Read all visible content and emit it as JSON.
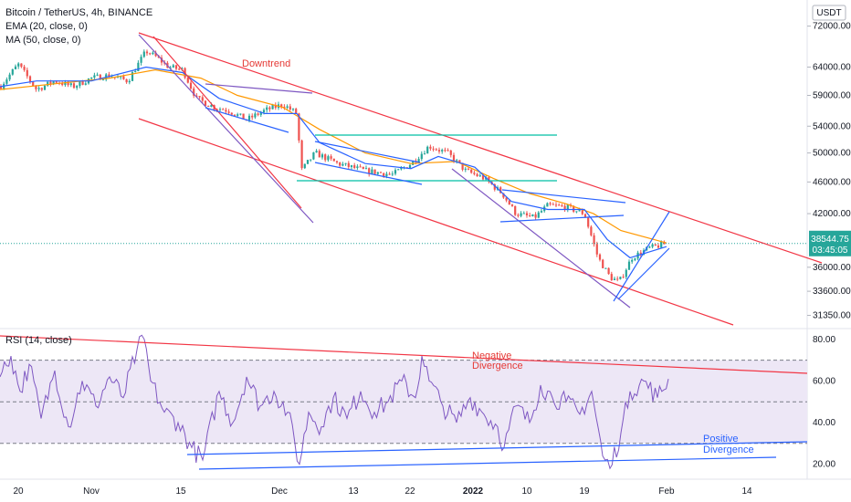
{
  "header": {
    "legend": [
      "Bitcoin / TetherUS, 4h, BINANCE",
      "EMA (20, close, 0)",
      "MA (50, close, 0)"
    ],
    "currency_badge": "USDT",
    "rsi_legend": "RSI (14, close)"
  },
  "colors": {
    "up": "#26a69a",
    "down": "#ef5350",
    "ema": "#2962ff",
    "ma": "#ff9800",
    "trend_red": "#f23645",
    "purple": "#7e57c2",
    "blue": "#2962ff",
    "teal": "#00bfa5",
    "rsi_line": "#7e57c2",
    "rsi_band": "#ede7f6",
    "price_label": "#26a69a"
  },
  "annotations": {
    "downtrend": "Downtrend",
    "neg_div": [
      "Negative",
      "Divergence"
    ],
    "pos_div": [
      "Positive",
      "Divergence"
    ]
  },
  "price_label": {
    "value": "38544.75",
    "countdown": "03:45:05"
  },
  "chart_data": [
    {
      "type": "candlestick",
      "title": "Bitcoin / TetherUS, 4h, BINANCE",
      "x_ticks": [
        "20",
        "Nov",
        "15",
        "Dec",
        "13",
        "22",
        "2022",
        "10",
        "19",
        "Feb",
        "14"
      ],
      "y_ticks": [
        "72000.00",
        "64000.00",
        "59000.00",
        "54000.00",
        "50000.00",
        "46000.00",
        "42000.00",
        "36000.00",
        "33600.00",
        "31350.00"
      ],
      "y_scale": "log",
      "ylim": [
        30500,
        76000
      ],
      "last_price": 38544.75,
      "series_path": [
        [
          0,
          60500
        ],
        [
          20,
          64500
        ],
        [
          40,
          60000
        ],
        [
          60,
          61500
        ],
        [
          80,
          60500
        ],
        [
          100,
          62000
        ],
        [
          120,
          62500
        ],
        [
          140,
          61500
        ],
        [
          160,
          67000
        ],
        [
          170,
          66000
        ],
        [
          185,
          64000
        ],
        [
          200,
          63500
        ],
        [
          215,
          58500
        ],
        [
          235,
          57000
        ],
        [
          250,
          56500
        ],
        [
          270,
          55000
        ],
        [
          290,
          56500
        ],
        [
          310,
          57500
        ],
        [
          325,
          56000
        ],
        [
          330,
          47500
        ],
        [
          345,
          50000
        ],
        [
          370,
          48500
        ],
        [
          400,
          47500
        ],
        [
          430,
          47000
        ],
        [
          450,
          48500
        ],
        [
          470,
          51000
        ],
        [
          490,
          50000
        ],
        [
          510,
          47500
        ],
        [
          530,
          46500
        ],
        [
          550,
          44500
        ],
        [
          565,
          42000
        ],
        [
          585,
          41500
        ],
        [
          600,
          43000
        ],
        [
          620,
          42800
        ],
        [
          640,
          42000
        ],
        [
          655,
          37000
        ],
        [
          668,
          35000
        ],
        [
          678,
          34500
        ],
        [
          692,
          37000
        ],
        [
          710,
          38000
        ],
        [
          730,
          38544.75
        ]
      ],
      "ema": [
        [
          0,
          60500
        ],
        [
          40,
          61500
        ],
        [
          100,
          61500
        ],
        [
          160,
          64000
        ],
        [
          200,
          63000
        ],
        [
          240,
          58500
        ],
        [
          290,
          56000
        ],
        [
          325,
          56000
        ],
        [
          350,
          51500
        ],
        [
          400,
          48500
        ],
        [
          450,
          47800
        ],
        [
          480,
          49500
        ],
        [
          520,
          48000
        ],
        [
          560,
          43500
        ],
        [
          600,
          42500
        ],
        [
          640,
          42500
        ],
        [
          665,
          39000
        ],
        [
          690,
          37000
        ],
        [
          730,
          38200
        ]
      ],
      "ma": [
        [
          0,
          60000
        ],
        [
          60,
          61000
        ],
        [
          120,
          62000
        ],
        [
          170,
          63500
        ],
        [
          220,
          62000
        ],
        [
          260,
          59000
        ],
        [
          310,
          57000
        ],
        [
          350,
          53500
        ],
        [
          400,
          50000
        ],
        [
          450,
          48500
        ],
        [
          500,
          48800
        ],
        [
          540,
          46500
        ],
        [
          580,
          44500
        ],
        [
          620,
          43200
        ],
        [
          650,
          42000
        ],
        [
          680,
          40000
        ],
        [
          730,
          38600
        ]
      ]
    },
    {
      "type": "line",
      "title": "RSI (14, close)",
      "y_ticks": [
        "80.00",
        "60.00",
        "40.00",
        "20.00"
      ],
      "ylim": [
        15,
        83
      ],
      "overbought": 70,
      "oversold": 30,
      "midline": 50,
      "series": [
        {
          "name": "RSI (14, close)",
          "values": [
            [
              0,
              62
            ],
            [
              12,
              72
            ],
            [
              22,
              55
            ],
            [
              32,
              68
            ],
            [
              45,
              42
            ],
            [
              60,
              65
            ],
            [
              75,
              38
            ],
            [
              90,
              60
            ],
            [
              105,
              48
            ],
            [
              120,
              62
            ],
            [
              135,
              52
            ],
            [
              150,
              75
            ],
            [
              158,
              80
            ],
            [
              165,
              60
            ],
            [
              180,
              45
            ],
            [
              195,
              40
            ],
            [
              210,
              28
            ],
            [
              222,
              22
            ],
            [
              240,
              55
            ],
            [
              255,
              40
            ],
            [
              270,
              62
            ],
            [
              285,
              48
            ],
            [
              300,
              55
            ],
            [
              315,
              45
            ],
            [
              328,
              20
            ],
            [
              338,
              45
            ],
            [
              352,
              38
            ],
            [
              365,
              52
            ],
            [
              380,
              42
            ],
            [
              395,
              55
            ],
            [
              410,
              45
            ],
            [
              425,
              50
            ],
            [
              440,
              60
            ],
            [
              455,
              52
            ],
            [
              462,
              72
            ],
            [
              470,
              60
            ],
            [
              485,
              48
            ],
            [
              500,
              40
            ],
            [
              515,
              52
            ],
            [
              530,
              44
            ],
            [
              545,
              38
            ],
            [
              552,
              28
            ],
            [
              565,
              48
            ],
            [
              580,
              40
            ],
            [
              592,
              58
            ],
            [
              605,
              52
            ],
            [
              620,
              50
            ],
            [
              635,
              44
            ],
            [
              648,
              55
            ],
            [
              660,
              24
            ],
            [
              668,
              18
            ],
            [
              680,
              35
            ],
            [
              690,
              55
            ],
            [
              705,
              60
            ],
            [
              720,
              52
            ],
            [
              732,
              61
            ]
          ]
        }
      ],
      "x_ticks": [
        "20",
        "Nov",
        "15",
        "Dec",
        "13",
        "22",
        "2022",
        "10",
        "19",
        "Feb",
        "14"
      ]
    }
  ]
}
